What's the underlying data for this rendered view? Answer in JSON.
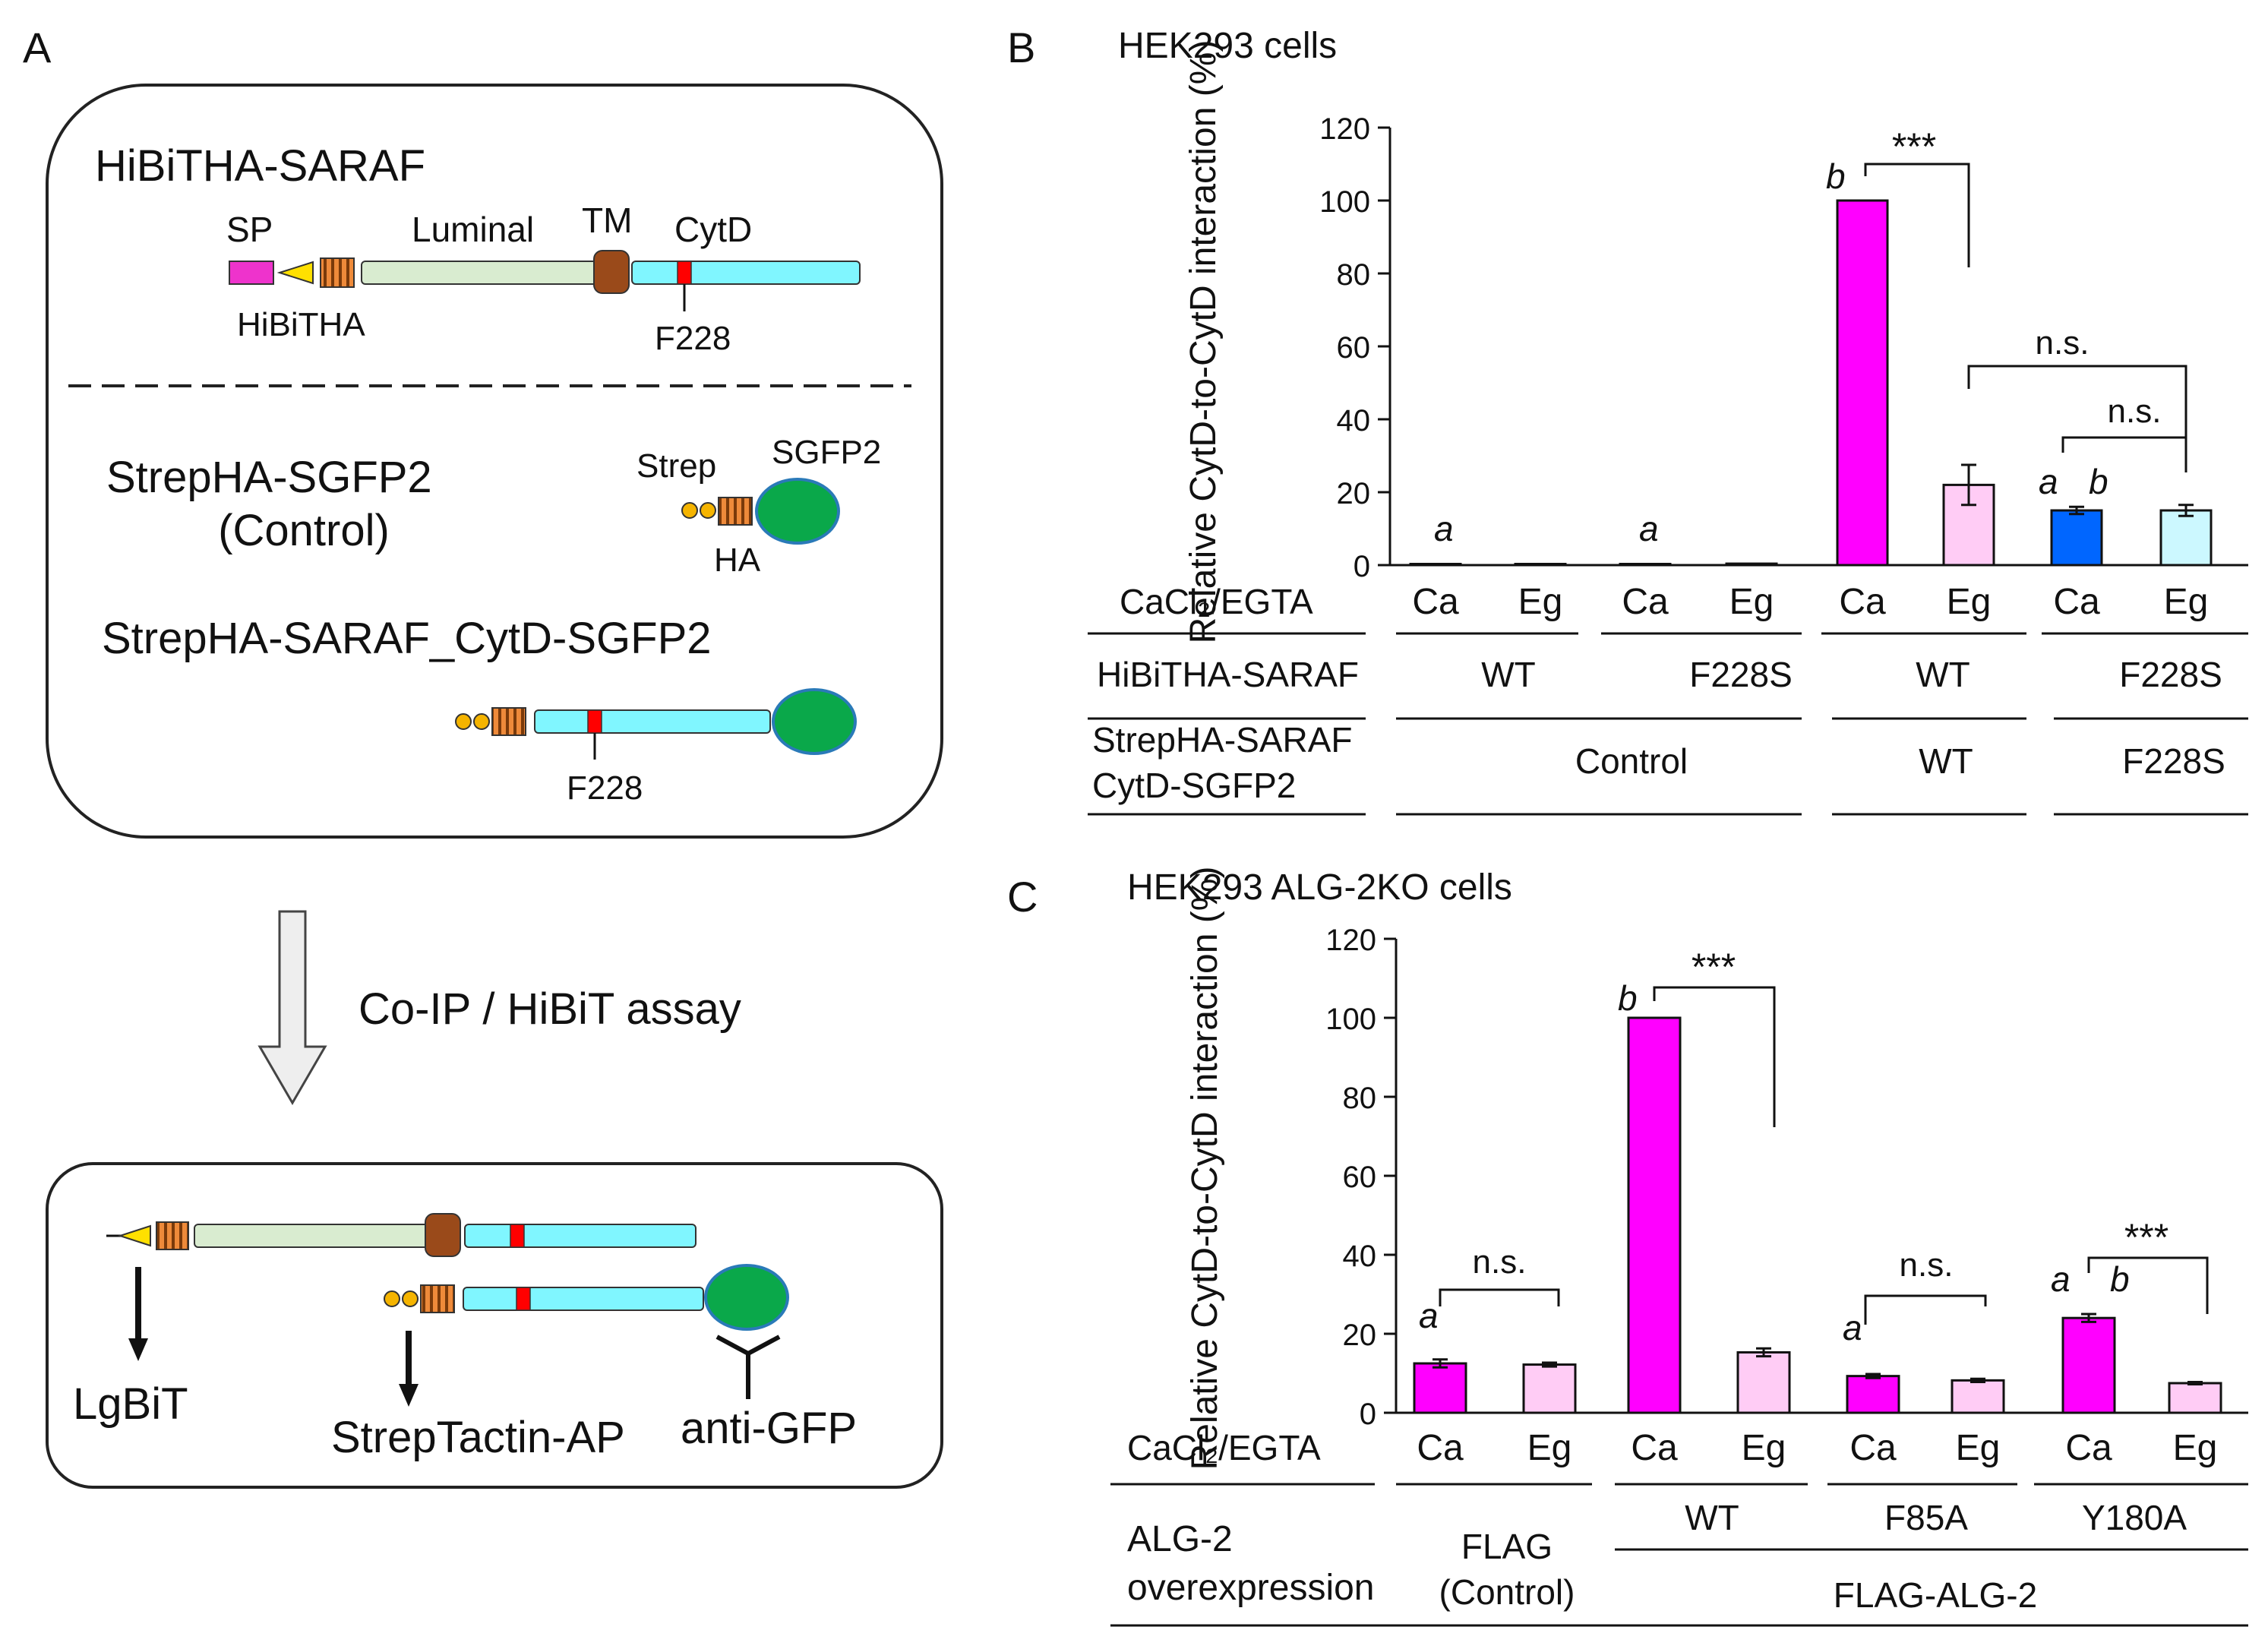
{
  "panel_a": {
    "letter": "A",
    "hibitha_saraf": {
      "title": "HiBiTHA-SARAF",
      "sp": "SP",
      "luminal": "Luminal",
      "tm": "TM",
      "cytd": "CytD",
      "hibitha": "HiBiTHA",
      "f228": "F228"
    },
    "control": {
      "title": "StrepHA-SGFP2",
      "subtitle": "(Control)",
      "strep": "Strep",
      "sgfp2": "SGFP2",
      "ha": "HA"
    },
    "cytd_construct": {
      "title": "StrepHA-SARAF_CytD-SGFP2",
      "f228": "F228"
    },
    "arrow_label": "Co-IP / HiBiT assay",
    "detection": {
      "lgbit": "LgBiT",
      "streptactin": "StrepTactin-AP",
      "anti_gfp": "anti-GFP"
    },
    "colors": {
      "sp": "#ee33cc",
      "hibit_triangle": "#ffe000",
      "ha_tag": "#ee8a3a",
      "luminal": "#d9ecd0",
      "tm": "#9a4a1a",
      "cytd": "#80f6ff",
      "f228_mark": "#ff0000",
      "strep": "#f5b400",
      "sgfp2": "#0aa84a",
      "sgfp2_outline": "#2a7ab8"
    }
  },
  "panel_b": {
    "letter": "B",
    "title": "HEK293 cells",
    "row1_label": "CaCl₂/EGTA",
    "row2_label": "HiBiTHA-SARAF",
    "row3_label_line1": "StrepHA-SARAF",
    "row3_label_line2": "CytD-SGFP2",
    "row1_values": [
      "Ca",
      "Eg",
      "Ca",
      "Eg",
      "Ca",
      "Eg",
      "Ca",
      "Eg"
    ],
    "row2_values": [
      "WT",
      "F228S",
      "WT",
      "F228S"
    ],
    "row3_values": [
      "Control",
      "WT",
      "F228S"
    ],
    "annotations": {
      "a1": "a",
      "a2": "a",
      "b_wt": "b",
      "stars": "***",
      "ns1": "n.s.",
      "ns2": "n.s.",
      "a3": "a",
      "b3": "b"
    }
  },
  "panel_c": {
    "letter": "C",
    "title": "HEK293 ALG-2KO cells",
    "row1_label": "CaCl₂/EGTA",
    "row2_label_line1": "ALG-2",
    "row2_label_line2": "overexpression",
    "row1_values": [
      "Ca",
      "Eg",
      "Ca",
      "Eg",
      "Ca",
      "Eg",
      "Ca",
      "Eg"
    ],
    "flag_line1": "FLAG",
    "flag_line2": "(Control)",
    "mutants": [
      "WT",
      "F85A",
      "Y180A"
    ],
    "flag_alg2": "FLAG-ALG-2",
    "annotations": {
      "ns1": "n.s.",
      "a1": "a",
      "b_wt": "b",
      "stars1": "***",
      "ns2": "n.s.",
      "a2": "a",
      "a3": "a",
      "b3": "b",
      "stars2": "***"
    }
  },
  "chart_data": [
    {
      "type": "bar",
      "title": "HEK293 cells",
      "ylabel": "Relative CytD-to-CytD interaction (%)",
      "ylim": [
        0,
        120
      ],
      "yticks": [
        0,
        20,
        40,
        60,
        80,
        100,
        120
      ],
      "categories": [
        "Ca",
        "Eg",
        "Ca",
        "Eg",
        "Ca",
        "Eg",
        "Ca",
        "Eg"
      ],
      "values": [
        0.3,
        0.1,
        0.2,
        0.4,
        100,
        22,
        15,
        15
      ],
      "errors": [
        0,
        0,
        0,
        0,
        0,
        5.5,
        1,
        1.5
      ],
      "colors": [
        "#ff00ff",
        "#ffccf5",
        "#ff00ff",
        "#ffccf5",
        "#ff00ff",
        "#ffccf5",
        "#0066ff",
        "#ccf8ff"
      ]
    },
    {
      "type": "bar",
      "title": "HEK293 ALG-2KO cells",
      "ylabel": "Relative CytD-to-CytD interaction (%)",
      "ylim": [
        0,
        120
      ],
      "yticks": [
        0,
        20,
        40,
        60,
        80,
        100,
        120
      ],
      "categories": [
        "Ca",
        "Eg",
        "Ca",
        "Eg",
        "Ca",
        "Eg",
        "Ca",
        "Eg"
      ],
      "values": [
        12.5,
        12.2,
        100,
        15.3,
        9.3,
        8.2,
        24,
        7.5
      ],
      "errors": [
        1,
        0.5,
        0,
        1,
        0.5,
        0.4,
        1,
        0.3
      ],
      "colors": [
        "#ff00ff",
        "#ffccf5",
        "#ff00ff",
        "#ffccf5",
        "#ff00ff",
        "#ffccf5",
        "#ff00ff",
        "#ffccf5"
      ]
    }
  ]
}
